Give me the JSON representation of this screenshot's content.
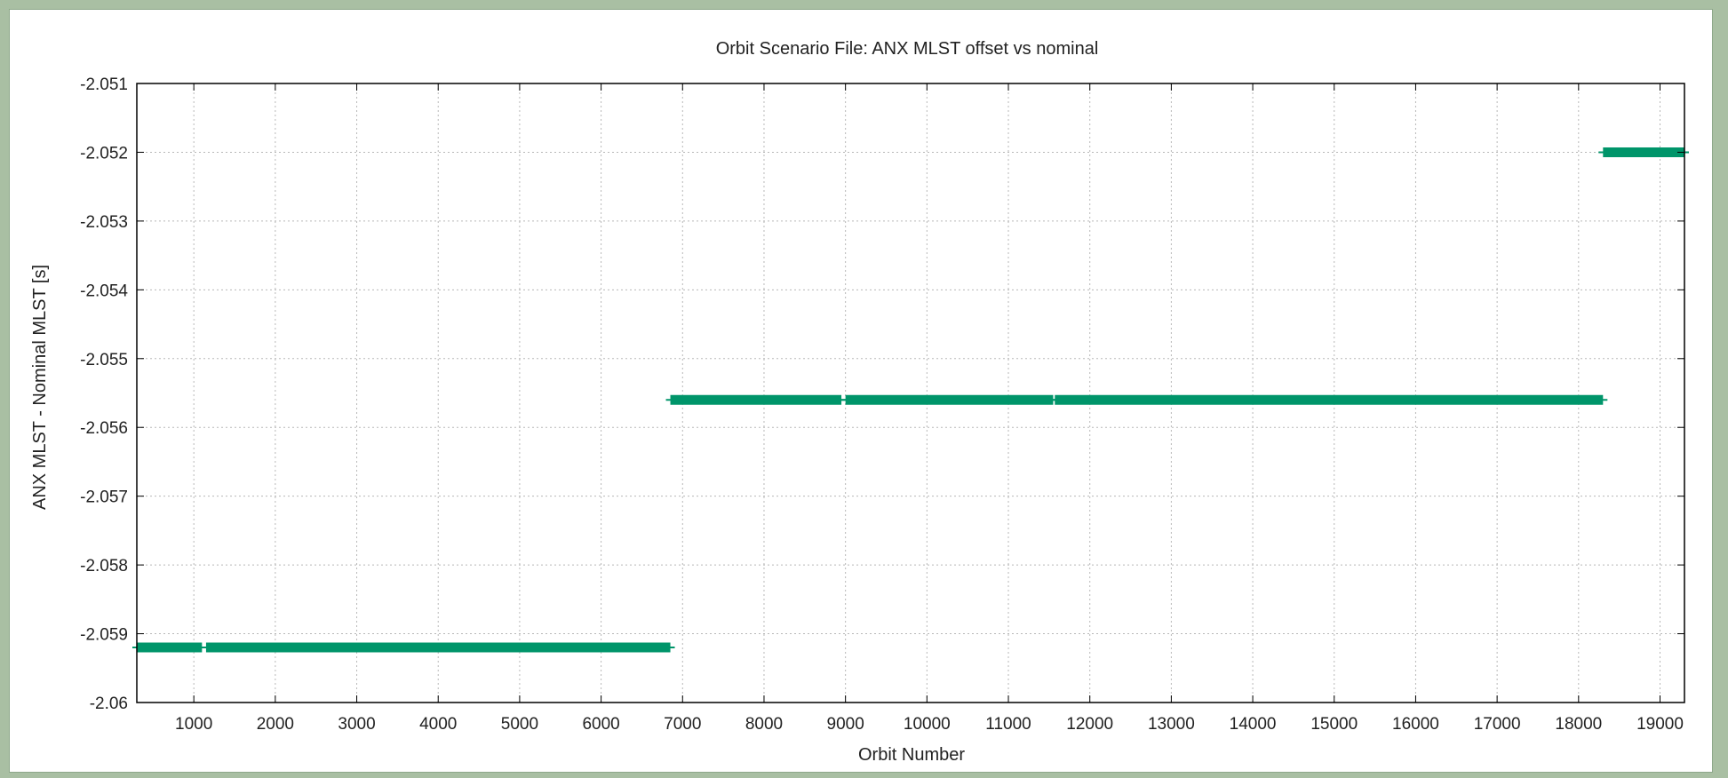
{
  "colors": {
    "background_border": "#a9bfa3",
    "plot_background": "#ffffff",
    "series": "#00956a",
    "grid": "#b8b8b8",
    "axis": "#000000"
  },
  "chart_data": {
    "type": "line",
    "title": "Orbit Scenario File: ANX MLST offset vs nominal",
    "xlabel": "Orbit Number",
    "ylabel": "ANX MLST - Nominal MLST [s]",
    "xlim": [
      300,
      19300
    ],
    "ylim": [
      -2.06,
      -2.051
    ],
    "xticks": [
      1000,
      2000,
      3000,
      4000,
      5000,
      6000,
      7000,
      8000,
      9000,
      10000,
      11000,
      12000,
      13000,
      14000,
      15000,
      16000,
      17000,
      18000,
      19000
    ],
    "xtick_labels": [
      "1000",
      "2000",
      "3000",
      "4000",
      "5000",
      "6000",
      "7000",
      "8000",
      "9000",
      "10000",
      "11000",
      "12000",
      "13000",
      "14000",
      "15000",
      "16000",
      "17000",
      "18000",
      "19000"
    ],
    "yticks": [
      -2.051,
      -2.052,
      -2.053,
      -2.054,
      -2.055,
      -2.056,
      -2.057,
      -2.058,
      -2.059,
      -2.06
    ],
    "ytick_labels": [
      "-2.051",
      "-2.052",
      "-2.053",
      "-2.054",
      "-2.055",
      "-2.056",
      "-2.057",
      "-2.058",
      "-2.059",
      "-2.06"
    ],
    "grid": true,
    "legend": "none",
    "series": [
      {
        "segments": [
          {
            "x": [
              300,
              1100
            ],
            "y": -2.0592
          },
          {
            "x": [
              1150,
              6850
            ],
            "y": -2.0592
          },
          {
            "x": [
              6850,
              8950
            ],
            "y": -2.0556
          },
          {
            "x": [
              9000,
              11550
            ],
            "y": -2.0556
          },
          {
            "x": [
              11570,
              18300
            ],
            "y": -2.0556
          },
          {
            "x": [
              18300,
              19300
            ],
            "y": -2.052
          }
        ]
      }
    ]
  }
}
